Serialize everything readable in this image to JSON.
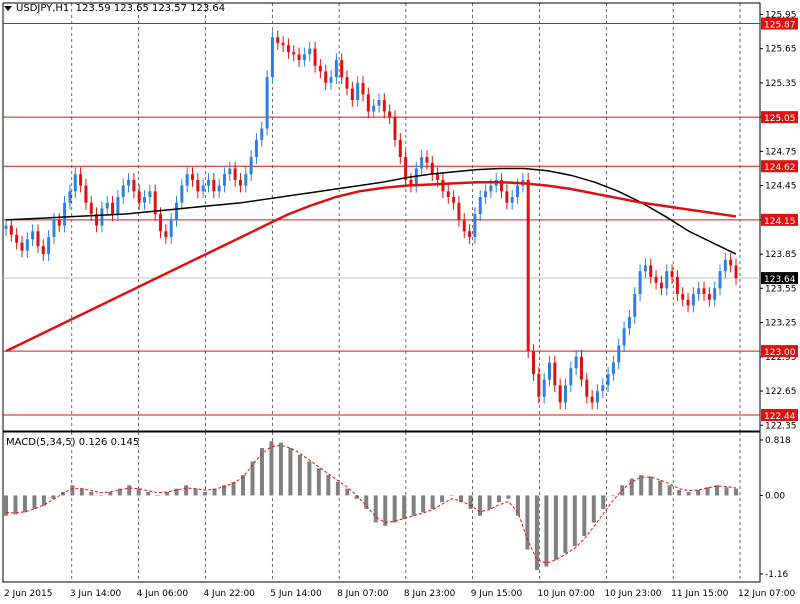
{
  "header": {
    "symbol_tf": "USDJPY,H1",
    "ohlc": "123.59 123.65 123.57 123.64"
  },
  "macd": {
    "label": "MACD(5,34,5)",
    "values": "0.126 0.145",
    "scale_labels": [
      "0.818",
      "0.00",
      "-1.16"
    ],
    "scale_values": [
      0.818,
      0.0,
      -1.16
    ]
  },
  "price_axis": {
    "ticks": [
      "125.95",
      "125.65",
      "125.35",
      "125.05",
      "124.75",
      "124.45",
      "124.15",
      "123.85",
      "123.55",
      "123.25",
      "122.95",
      "122.65",
      "122.35"
    ]
  },
  "time_axis": {
    "ticks": [
      "2 Jun 2015",
      "3 Jun 14:00",
      "4 Jun 06:00",
      "4 Jun 22:00",
      "5 Jun 14:00",
      "8 Jun 07:00",
      "8 Jun 23:00",
      "9 Jun 15:00",
      "10 Jun 07:00",
      "10 Jun 23:00",
      "11 Jun 15:00",
      "12 Jun 07:00"
    ]
  },
  "levels": [
    {
      "value": 125.87,
      "label": "125.87"
    },
    {
      "value": 125.05,
      "label": "125.05"
    },
    {
      "value": 124.62,
      "label": "124.62"
    },
    {
      "value": 124.15,
      "label": "124.15"
    },
    {
      "value": 123.0,
      "label": "123.00"
    },
    {
      "value": 122.44,
      "label": "122.44"
    }
  ],
  "current_price": {
    "value": 123.64,
    "label": "123.64"
  },
  "colors": {
    "bull": "#2f7fe0",
    "bear": "#e01010",
    "level": "#e01010",
    "ma_fast": "#000000",
    "ma_slow": "#e01010",
    "macd_hist": "#808080",
    "macd_signal": "#e01010",
    "grid": "#000000",
    "axis_text": "#000000"
  },
  "chart_data": {
    "type": "candlestick",
    "symbol": "USDJPY",
    "timeframe": "H1",
    "x_labels": [
      "2 Jun 2015",
      "3 Jun 14:00",
      "4 Jun 06:00",
      "4 Jun 22:00",
      "5 Jun 14:00",
      "8 Jun 07:00",
      "8 Jun 23:00",
      "9 Jun 15:00",
      "10 Jun 07:00",
      "10 Jun 23:00",
      "11 Jun 15:00",
      "12 Jun 07:00"
    ],
    "ylim": [
      122.3,
      126.05
    ],
    "grid": true,
    "closes": [
      124.1,
      124.02,
      123.95,
      123.88,
      123.98,
      124.05,
      123.92,
      123.85,
      124.0,
      124.15,
      124.1,
      124.3,
      124.4,
      124.55,
      124.45,
      124.3,
      124.2,
      124.1,
      124.25,
      124.3,
      124.2,
      124.35,
      124.45,
      124.5,
      124.4,
      124.3,
      124.35,
      124.4,
      124.2,
      124.05,
      124.0,
      124.15,
      124.3,
      124.45,
      124.55,
      124.5,
      124.4,
      124.45,
      124.5,
      124.4,
      124.45,
      124.55,
      124.6,
      124.5,
      124.45,
      124.55,
      124.7,
      124.85,
      124.95,
      125.4,
      125.75,
      125.7,
      125.68,
      125.62,
      125.6,
      125.55,
      125.6,
      125.65,
      125.5,
      125.45,
      125.35,
      125.4,
      125.55,
      125.4,
      125.3,
      125.2,
      125.35,
      125.25,
      125.1,
      125.15,
      125.2,
      125.1,
      125.05,
      124.85,
      124.7,
      124.5,
      124.45,
      124.6,
      124.7,
      124.65,
      124.55,
      124.5,
      124.4,
      124.35,
      124.3,
      124.15,
      124.05,
      124.0,
      124.2,
      124.35,
      124.4,
      124.45,
      124.5,
      124.4,
      124.3,
      124.35,
      124.45,
      124.5,
      123.0,
      122.8,
      122.6,
      122.75,
      122.9,
      122.7,
      122.55,
      122.7,
      122.85,
      122.95,
      122.75,
      122.6,
      122.55,
      122.65,
      122.7,
      122.8,
      122.9,
      123.05,
      123.2,
      123.3,
      123.5,
      123.7,
      123.75,
      123.65,
      123.6,
      123.55,
      123.7,
      123.65,
      123.5,
      123.45,
      123.4,
      123.5,
      123.55,
      123.5,
      123.45,
      123.55,
      123.7,
      123.8,
      123.75,
      123.64
    ],
    "series": [
      {
        "name": "MA fast",
        "values": [
          124.15,
          124.16,
          124.17,
          124.18,
          124.19,
          124.2,
          124.22,
          124.24,
          124.26,
          124.28,
          124.3,
          124.33,
          124.36,
          124.39,
          124.42,
          124.45,
          124.48,
          124.52,
          124.55,
          124.57,
          124.59,
          124.6,
          124.6,
          124.58,
          124.54,
          124.48,
          124.4,
          124.3,
          124.18,
          124.05,
          123.95,
          123.85
        ]
      },
      {
        "name": "MA slow",
        "values": [
          123.0,
          123.1,
          123.2,
          123.3,
          123.4,
          123.5,
          123.6,
          123.7,
          123.8,
          123.9,
          124.0,
          124.1,
          124.2,
          124.28,
          124.35,
          124.4,
          124.43,
          124.45,
          124.46,
          124.47,
          124.48,
          124.48,
          124.47,
          124.45,
          124.42,
          124.38,
          124.34,
          124.3,
          124.27,
          124.24,
          124.21,
          124.18
        ]
      }
    ],
    "macd": {
      "histogram": [
        -0.3,
        -0.28,
        -0.25,
        -0.2,
        -0.15,
        -0.05,
        0.05,
        0.15,
        0.1,
        0.05,
        0.0,
        0.05,
        0.1,
        0.15,
        0.1,
        0.05,
        0.0,
        0.05,
        0.1,
        0.15,
        0.1,
        0.05,
        0.1,
        0.15,
        0.2,
        0.3,
        0.5,
        0.7,
        0.8,
        0.78,
        0.7,
        0.6,
        0.5,
        0.4,
        0.3,
        0.2,
        0.1,
        -0.05,
        -0.2,
        -0.4,
        -0.45,
        -0.4,
        -0.35,
        -0.3,
        -0.25,
        -0.2,
        -0.1,
        0.0,
        -0.1,
        -0.2,
        -0.3,
        -0.2,
        -0.1,
        -0.05,
        -0.3,
        -0.8,
        -1.1,
        -1.05,
        -0.95,
        -0.85,
        -0.75,
        -0.6,
        -0.4,
        -0.2,
        0.0,
        0.15,
        0.25,
        0.3,
        0.28,
        0.22,
        0.15,
        0.08,
        0.05,
        0.08,
        0.12,
        0.15,
        0.12,
        0.1
      ],
      "signal": [
        -0.25,
        -0.26,
        -0.24,
        -0.2,
        -0.14,
        -0.06,
        0.03,
        0.1,
        0.1,
        0.07,
        0.04,
        0.05,
        0.08,
        0.11,
        0.1,
        0.07,
        0.04,
        0.05,
        0.08,
        0.11,
        0.1,
        0.08,
        0.09,
        0.13,
        0.18,
        0.27,
        0.45,
        0.62,
        0.72,
        0.74,
        0.7,
        0.62,
        0.52,
        0.42,
        0.32,
        0.22,
        0.12,
        0.0,
        -0.15,
        -0.32,
        -0.4,
        -0.38,
        -0.34,
        -0.3,
        -0.26,
        -0.21,
        -0.13,
        -0.05,
        -0.08,
        -0.15,
        -0.24,
        -0.21,
        -0.14,
        -0.09,
        -0.25,
        -0.65,
        -0.95,
        -1.0,
        -0.95,
        -0.87,
        -0.78,
        -0.64,
        -0.46,
        -0.27,
        -0.08,
        0.08,
        0.2,
        0.27,
        0.27,
        0.23,
        0.17,
        0.1,
        0.07,
        0.08,
        0.11,
        0.14,
        0.13,
        0.11
      ]
    }
  }
}
